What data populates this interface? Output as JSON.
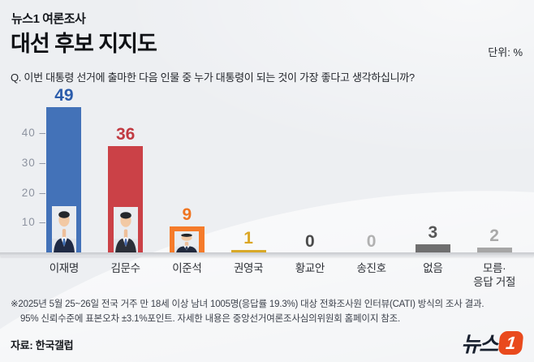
{
  "header": {
    "kicker": "뉴스1 여론조사",
    "title": "대선 후보 지지도",
    "unit_label": "단위: %",
    "question": "Q. 이번 대통령 선거에 출마한 다음 인물 중 누가 대통령이 되는 것이 가장 좋다고 생각하십니까?"
  },
  "chart_data": {
    "type": "bar",
    "title": "대선 후보 지지도",
    "unit": "%",
    "categories": [
      "이재명",
      "김문수",
      "이준석",
      "권영국",
      "황교안",
      "송진호",
      "없음",
      "모름·\n응답 거절"
    ],
    "values": [
      49,
      36,
      9,
      1,
      0,
      0,
      3,
      2
    ],
    "bar_colors": [
      "#4372b8",
      "#cb4147",
      "#f57b2a",
      "#d9a928",
      "#6f6f6f",
      "#a6a6a6",
      "#6f6f6f",
      "#a6a6a6"
    ],
    "value_colors": [
      "#2b5cab",
      "#c13a42",
      "#ef7420",
      "#dba624",
      "#4b4b4b",
      "#b1b1b1",
      "#575757",
      "#a9a9a9"
    ],
    "has_photo": [
      true,
      true,
      true,
      false,
      false,
      false,
      false,
      false
    ],
    "yticks": [
      40,
      30,
      20,
      10
    ],
    "ylim": [
      0,
      52
    ],
    "grid": false,
    "legend": false,
    "xlabel": "",
    "ylabel": ""
  },
  "footnotes": [
    "※2025년 5월 25~26일 전국 거주 만 18세 이상 남녀 1005명(응답률 19.3%) 대상 전화조사원 인터뷰(CATI) 방식의 조사 결과.",
    "95% 신뢰수준에 표본오차 ±3.1%포인트. 자세한 내용은 중앙선거여론조사심의위원회 홈페이지 참조."
  ],
  "source": "자료: 한국갤럽",
  "logo": {
    "text": "뉴스",
    "badge": "1"
  }
}
